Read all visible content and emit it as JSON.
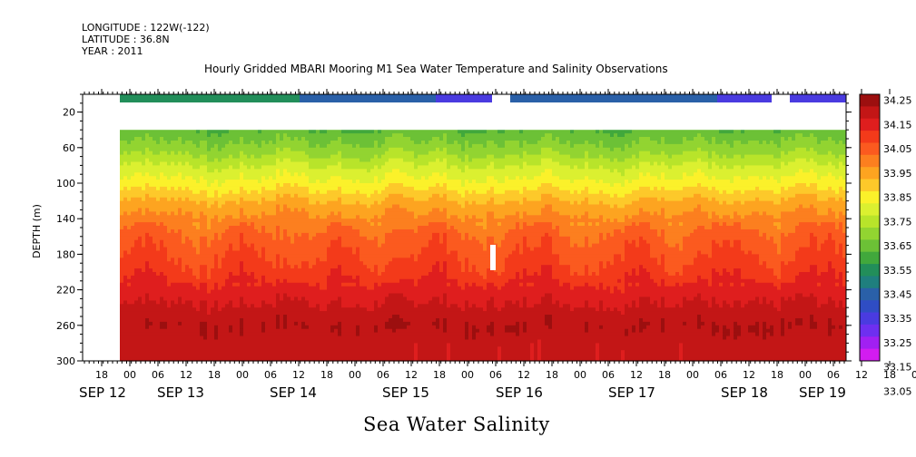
{
  "header": {
    "longitude": "LONGITUDE : 122W(-122)",
    "latitude": "LATITUDE : 36.8N",
    "year": "YEAR : 2011"
  },
  "title": "Hourly Gridded MBARI Mooring M1 Sea Water Temperature and Salinity Observations",
  "bottom_title": "Sea Water Salinity",
  "chart_data": {
    "type": "heatmap",
    "title": "Hourly Gridded MBARI Mooring M1 Sea Water Temperature and Salinity Observations",
    "xlabel": "",
    "ylabel": "DEPTH (m)",
    "ylim": [
      300,
      0
    ],
    "y_ticks": [
      20,
      60,
      100,
      140,
      180,
      220,
      260,
      300
    ],
    "x_hour_ticks": [
      "18",
      "00",
      "06",
      "12",
      "18",
      "00",
      "06",
      "12",
      "18",
      "00",
      "06",
      "12",
      "18",
      "00",
      "06",
      "12",
      "18",
      "00",
      "06",
      "12",
      "18",
      "00",
      "06",
      "12",
      "18",
      "00",
      "06",
      "12",
      "18",
      "00",
      "06"
    ],
    "x_date_labels": [
      "SEP 12",
      "SEP 13",
      "SEP 14",
      "SEP 15",
      "SEP 16",
      "SEP 17",
      "SEP 18",
      "SEP 19"
    ],
    "colorbar": {
      "levels": [
        "34.25",
        "34.15",
        "34.05",
        "33.95",
        "33.85",
        "33.75",
        "33.65",
        "33.55",
        "33.45",
        "33.35",
        "33.25",
        "33.15",
        "33.05"
      ],
      "colors": [
        "#9c0f0f",
        "#c31616",
        "#df1e1e",
        "#f33a1a",
        "#fb5a1f",
        "#fc7f1f",
        "#fda420",
        "#fdc92a",
        "#fbf12a",
        "#dbf030",
        "#b8e42a",
        "#92d431",
        "#6cc136",
        "#41a83c",
        "#228e5a",
        "#1f7f7e",
        "#2a60a8",
        "#2f4dc4",
        "#4a3be0",
        "#6e2ff0",
        "#a120f2",
        "#d21cf0"
      ]
    },
    "profile": [
      {
        "depth": 20,
        "salinity": 33.4
      },
      {
        "depth": 40,
        "salinity": 33.55
      },
      {
        "depth": 60,
        "salinity": 33.62
      },
      {
        "depth": 80,
        "salinity": 33.72
      },
      {
        "depth": 100,
        "salinity": 33.8
      },
      {
        "depth": 120,
        "salinity": 33.9
      },
      {
        "depth": 140,
        "salinity": 33.97
      },
      {
        "depth": 160,
        "salinity": 34.03
      },
      {
        "depth": 180,
        "salinity": 34.06
      },
      {
        "depth": 200,
        "salinity": 34.1
      },
      {
        "depth": 220,
        "salinity": 34.15
      },
      {
        "depth": 240,
        "salinity": 34.2
      },
      {
        "depth": 260,
        "salinity": 34.24
      },
      {
        "depth": 280,
        "salinity": 34.2
      },
      {
        "depth": 300,
        "salinity": 34.2
      }
    ]
  }
}
